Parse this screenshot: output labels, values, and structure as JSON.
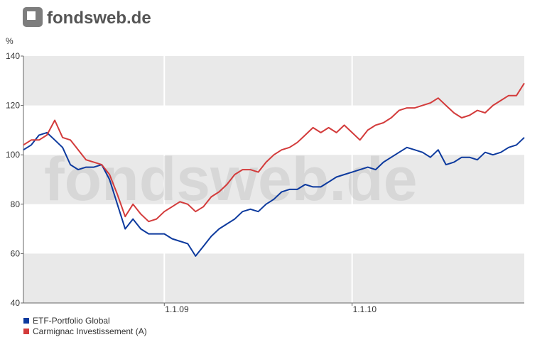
{
  "logo": "fondsweb.de",
  "chart_data": {
    "type": "line",
    "y_label": "%",
    "categories": [
      null,
      null,
      null,
      null,
      null,
      null,
      null,
      null,
      null,
      null,
      null,
      null,
      null,
      null,
      null,
      null,
      null,
      null,
      "1.1.09",
      null,
      null,
      null,
      null,
      null,
      null,
      null,
      null,
      null,
      null,
      null,
      null,
      null,
      null,
      null,
      null,
      null,
      null,
      null,
      null,
      null,
      null,
      null,
      "1.1.10",
      null,
      null,
      null,
      null,
      null,
      null,
      null,
      null,
      null,
      null,
      null,
      null,
      null,
      null,
      null,
      null,
      null,
      null,
      null,
      null,
      null,
      null
    ],
    "series": [
      {
        "name": "ETF-Portfolio Global",
        "color": "#0d3a9e",
        "values": [
          102,
          104,
          108,
          109,
          106,
          103,
          96,
          94,
          95,
          95,
          96,
          90,
          80,
          70,
          74,
          70,
          68,
          68,
          68,
          66,
          65,
          64,
          59,
          63,
          67,
          70,
          72,
          74,
          77,
          78,
          77,
          80,
          82,
          85,
          86,
          86,
          88,
          87,
          87,
          89,
          91,
          92,
          93,
          94,
          95,
          94,
          97,
          99,
          101,
          103,
          102,
          101,
          99,
          102,
          96,
          97,
          99,
          99,
          98,
          101,
          100,
          101,
          103,
          104,
          107
        ]
      },
      {
        "name": "Carmignac Investissement (A)",
        "color": "#d33b3b",
        "values": [
          104,
          106,
          106,
          108,
          114,
          107,
          106,
          102,
          98,
          97,
          96,
          92,
          84,
          75,
          80,
          76,
          73,
          74,
          77,
          79,
          81,
          80,
          77,
          79,
          83,
          85,
          88,
          92,
          94,
          94,
          93,
          97,
          100,
          102,
          103,
          105,
          108,
          111,
          109,
          111,
          109,
          112,
          109,
          106,
          110,
          112,
          113,
          115,
          118,
          119,
          119,
          120,
          121,
          123,
          120,
          117,
          115,
          116,
          118,
          117,
          120,
          122,
          124,
          124,
          129
        ]
      }
    ],
    "ylim": [
      40,
      140
    ],
    "yticks": [
      40,
      60,
      80,
      100,
      120,
      140
    ],
    "grid": true,
    "legend": "bottom-left"
  }
}
